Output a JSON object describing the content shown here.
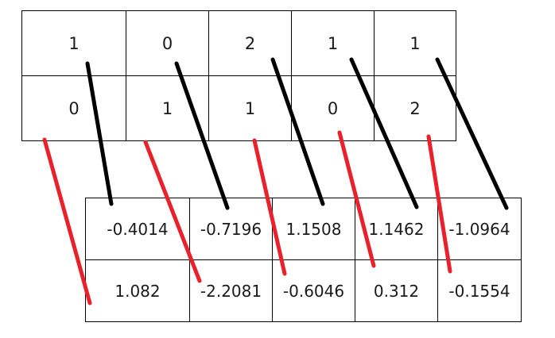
{
  "top_grid": {
    "rows": [
      [
        "1",
        "0",
        "2",
        "1",
        "1"
      ],
      [
        "0",
        "1",
        "1",
        "0",
        "2"
      ]
    ]
  },
  "bottom_grid": {
    "rows": [
      [
        "-0.4014",
        "-0.7196",
        "1.1508",
        "1.1462",
        "-1.0964"
      ],
      [
        "1.082",
        "-2.2081",
        "-0.6046",
        "0.312",
        "-0.1554"
      ]
    ]
  },
  "colors": {
    "row1_connector": "#000000",
    "row2_connector": "#e8212b"
  }
}
